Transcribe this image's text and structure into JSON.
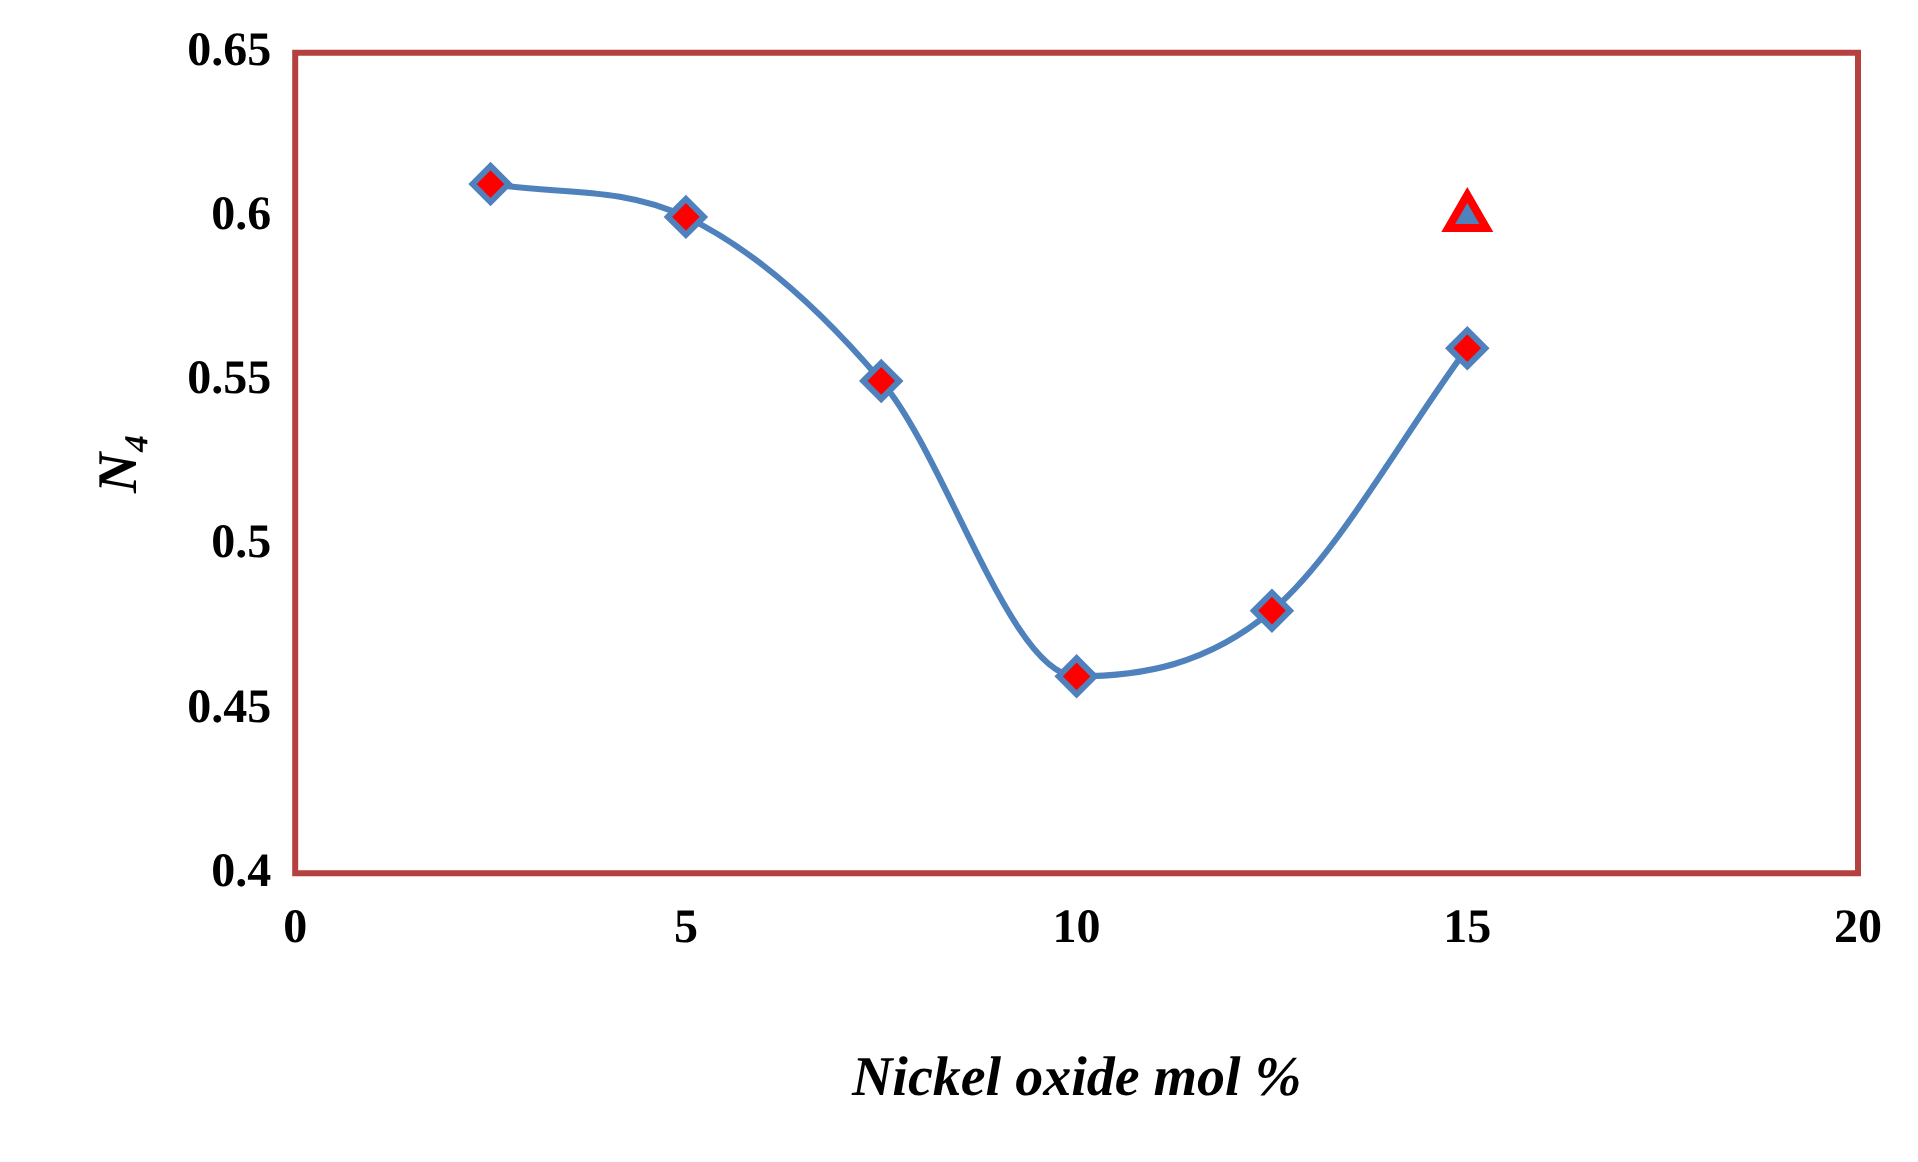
{
  "chart_data": {
    "type": "line",
    "xlabel": "Nickel oxide mol %",
    "ylabel": "N₄",
    "xlim": [
      0,
      20
    ],
    "xticks": [
      0,
      5,
      10,
      15,
      20
    ],
    "ylim": [
      0.4,
      0.65
    ],
    "yticks": [
      0.4,
      0.45,
      0.5,
      0.55,
      0.6,
      0.65
    ],
    "grid": false,
    "legend": false,
    "series": [
      {
        "color": "#4f81bd",
        "marker": "diamond",
        "x": [
          2.5,
          5,
          7.5,
          10,
          12.5,
          15
        ],
        "values": [
          0.61,
          0.6,
          0.55,
          0.46,
          0.48,
          0.56
        ]
      },
      {
        "type": "scatter",
        "color": "#ff0000",
        "marker": "triangle",
        "x": [
          15
        ],
        "values": [
          0.6
        ]
      }
    ]
  }
}
